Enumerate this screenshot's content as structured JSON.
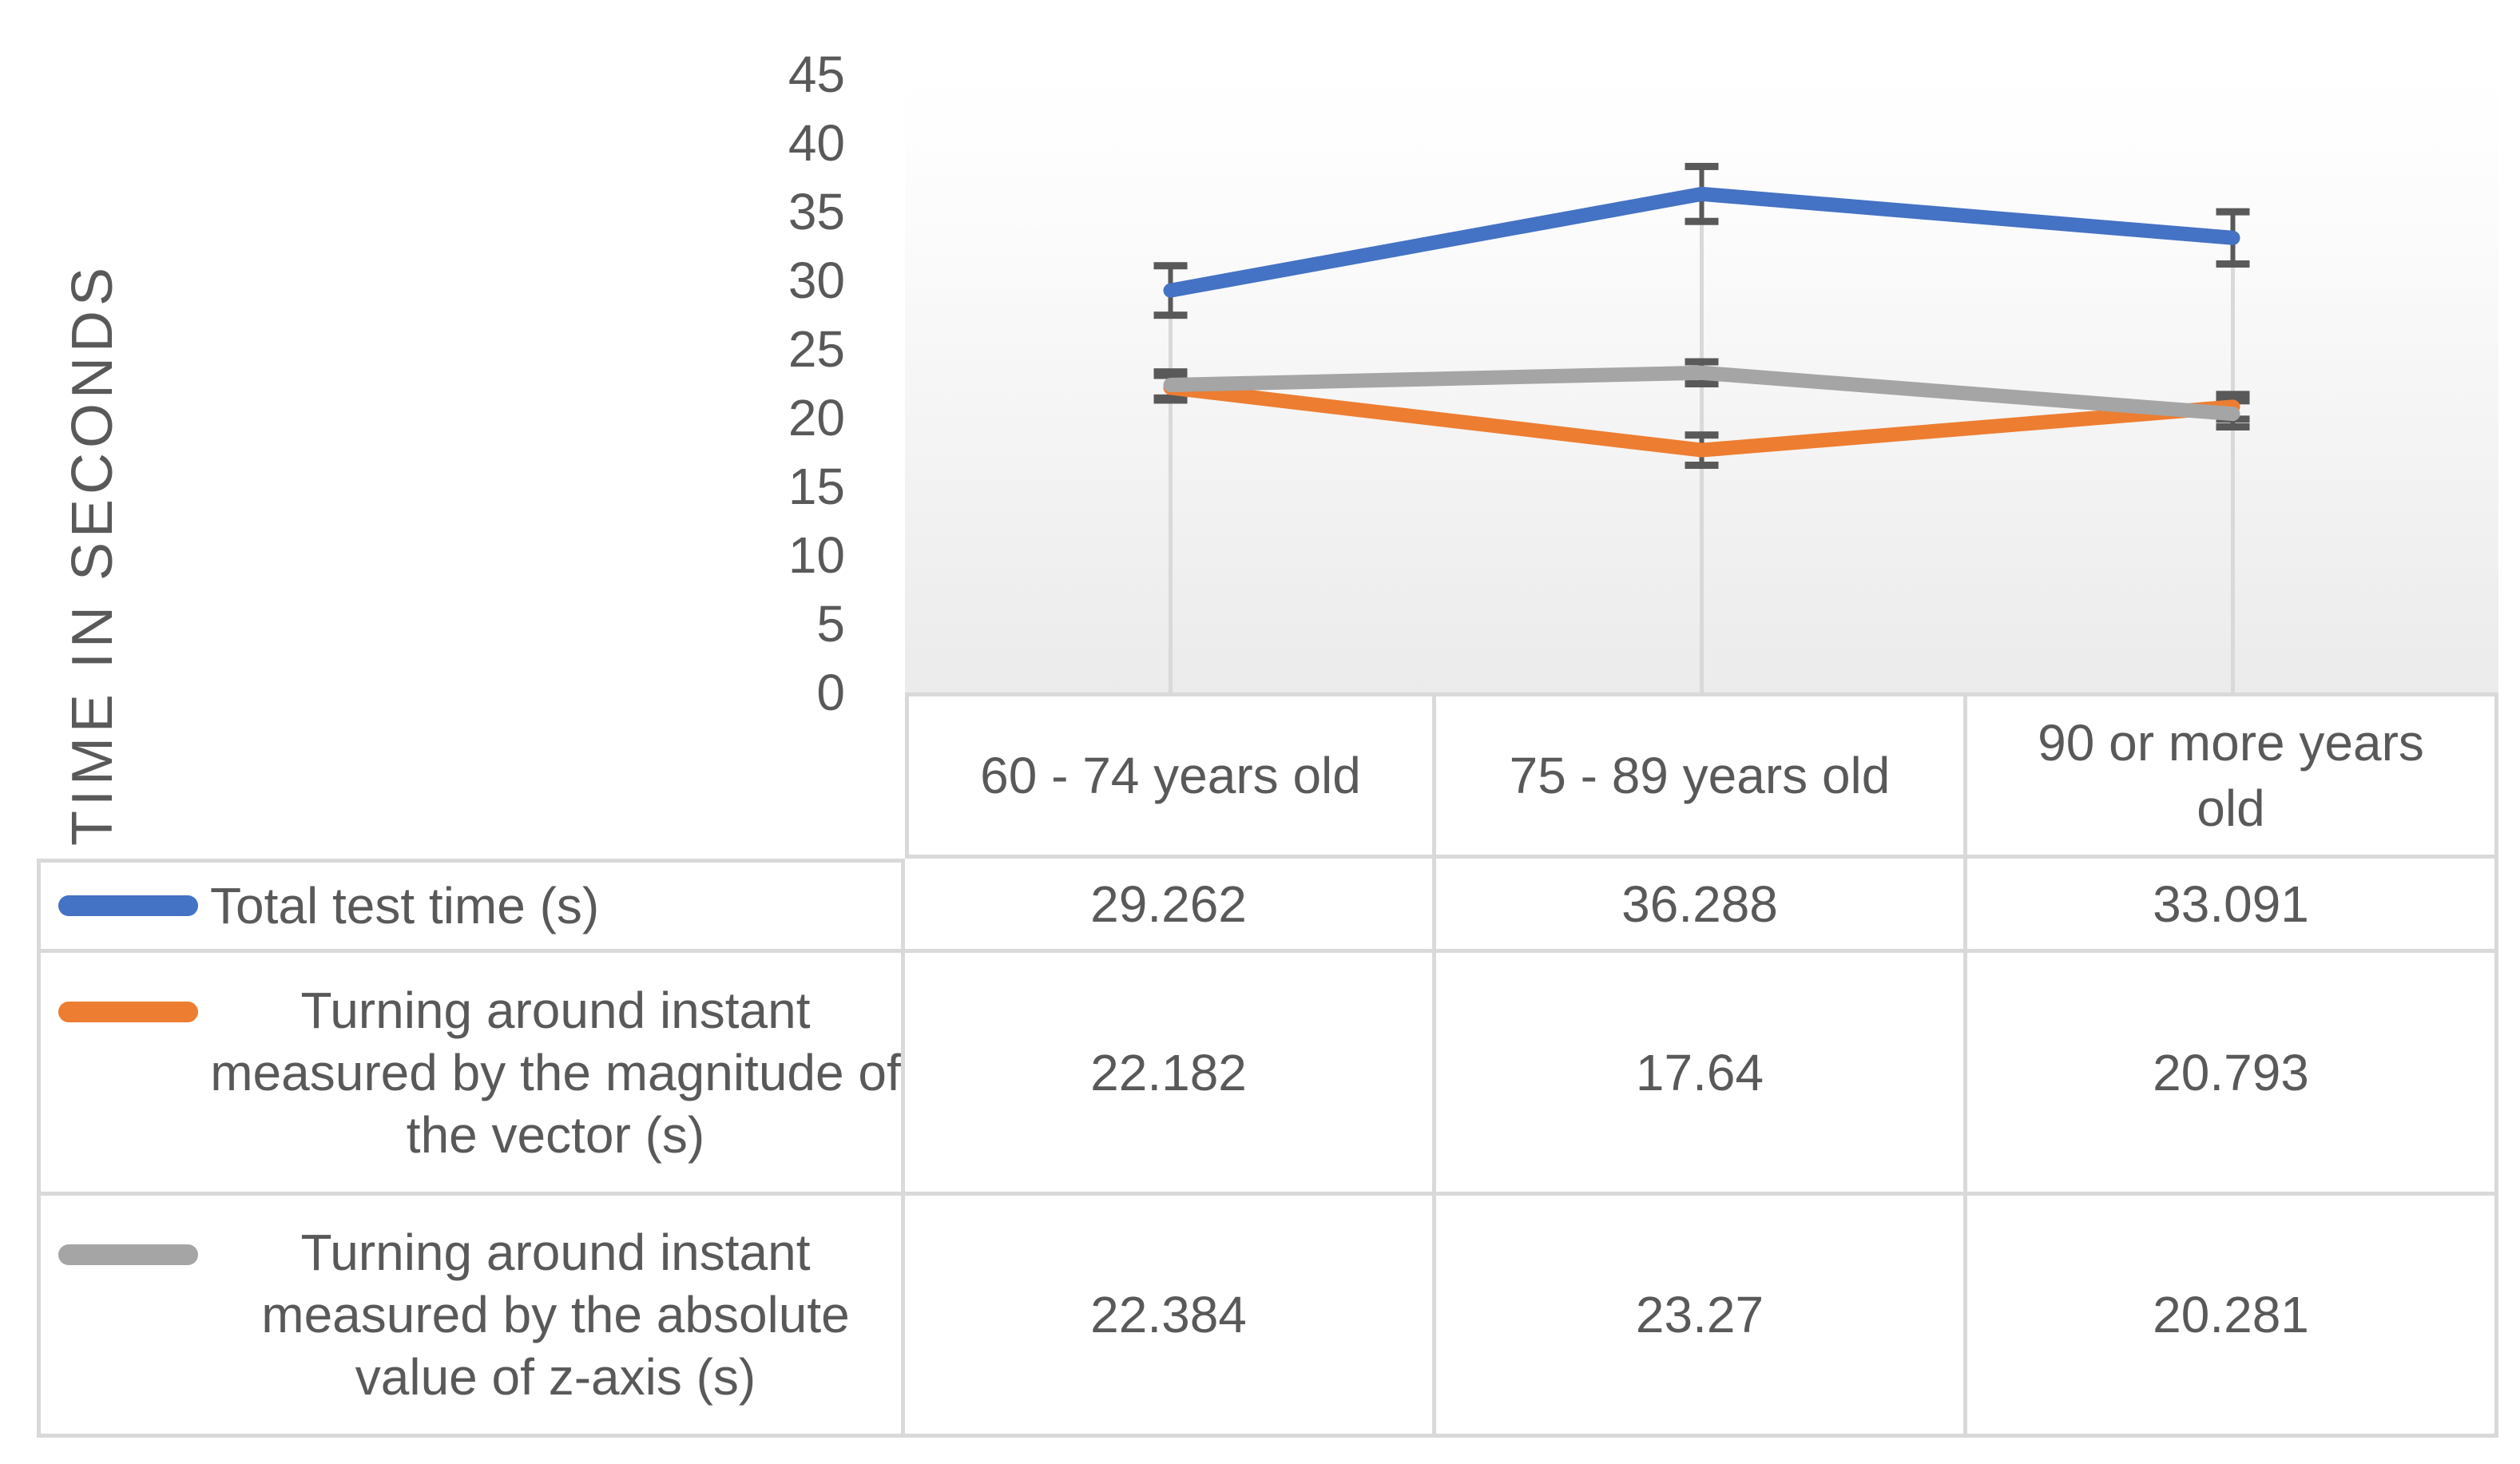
{
  "chart_data": {
    "type": "line",
    "title": "",
    "xlabel": "",
    "ylabel": "TIME IN SECONDS",
    "categories": [
      "60 - 74 years old",
      "75 - 89 years old",
      "90 or more years old"
    ],
    "y_ticks": [
      "0",
      "5",
      "10",
      "15",
      "20",
      "25",
      "30",
      "35",
      "40",
      "45"
    ],
    "ylim": [
      0,
      45
    ],
    "grid": "vertical drop lines from top series points down to category axis",
    "legend_position": "left column of attached data table",
    "error_bar_color": "#595959",
    "drop_line_color": "#D9D9D9",
    "plot_bg_top": "#FFFFFF",
    "plot_bg_bottom": "#EBEBEB",
    "axis_text_color": "#595959",
    "table_border_color": "#D9D9D9",
    "series": [
      {
        "name": "Total test time (s)",
        "color": "#4472C4",
        "values": [
          29.262,
          36.288,
          33.091
        ],
        "display_values": [
          "29.262",
          "36.288",
          "33.091"
        ],
        "error_bars": [
          1.8,
          2.0,
          1.9
        ]
      },
      {
        "name": "Turning around instant measured by the magnitude of the vector (s)",
        "color": "#ED7D31",
        "values": [
          22.182,
          17.64,
          20.793
        ],
        "display_values": [
          "22.182",
          "17.64",
          "20.793"
        ],
        "error_bars": [
          0.9,
          1.1,
          0.9
        ]
      },
      {
        "name": "Turning around instant measured by the absolute value of z-axis (s)",
        "color": "#A5A5A5",
        "values": [
          22.384,
          23.27,
          20.281
        ],
        "display_values": [
          "22.384",
          "23.27",
          "20.281"
        ],
        "error_bars": [
          0.95,
          0.8,
          0.95
        ]
      }
    ]
  }
}
